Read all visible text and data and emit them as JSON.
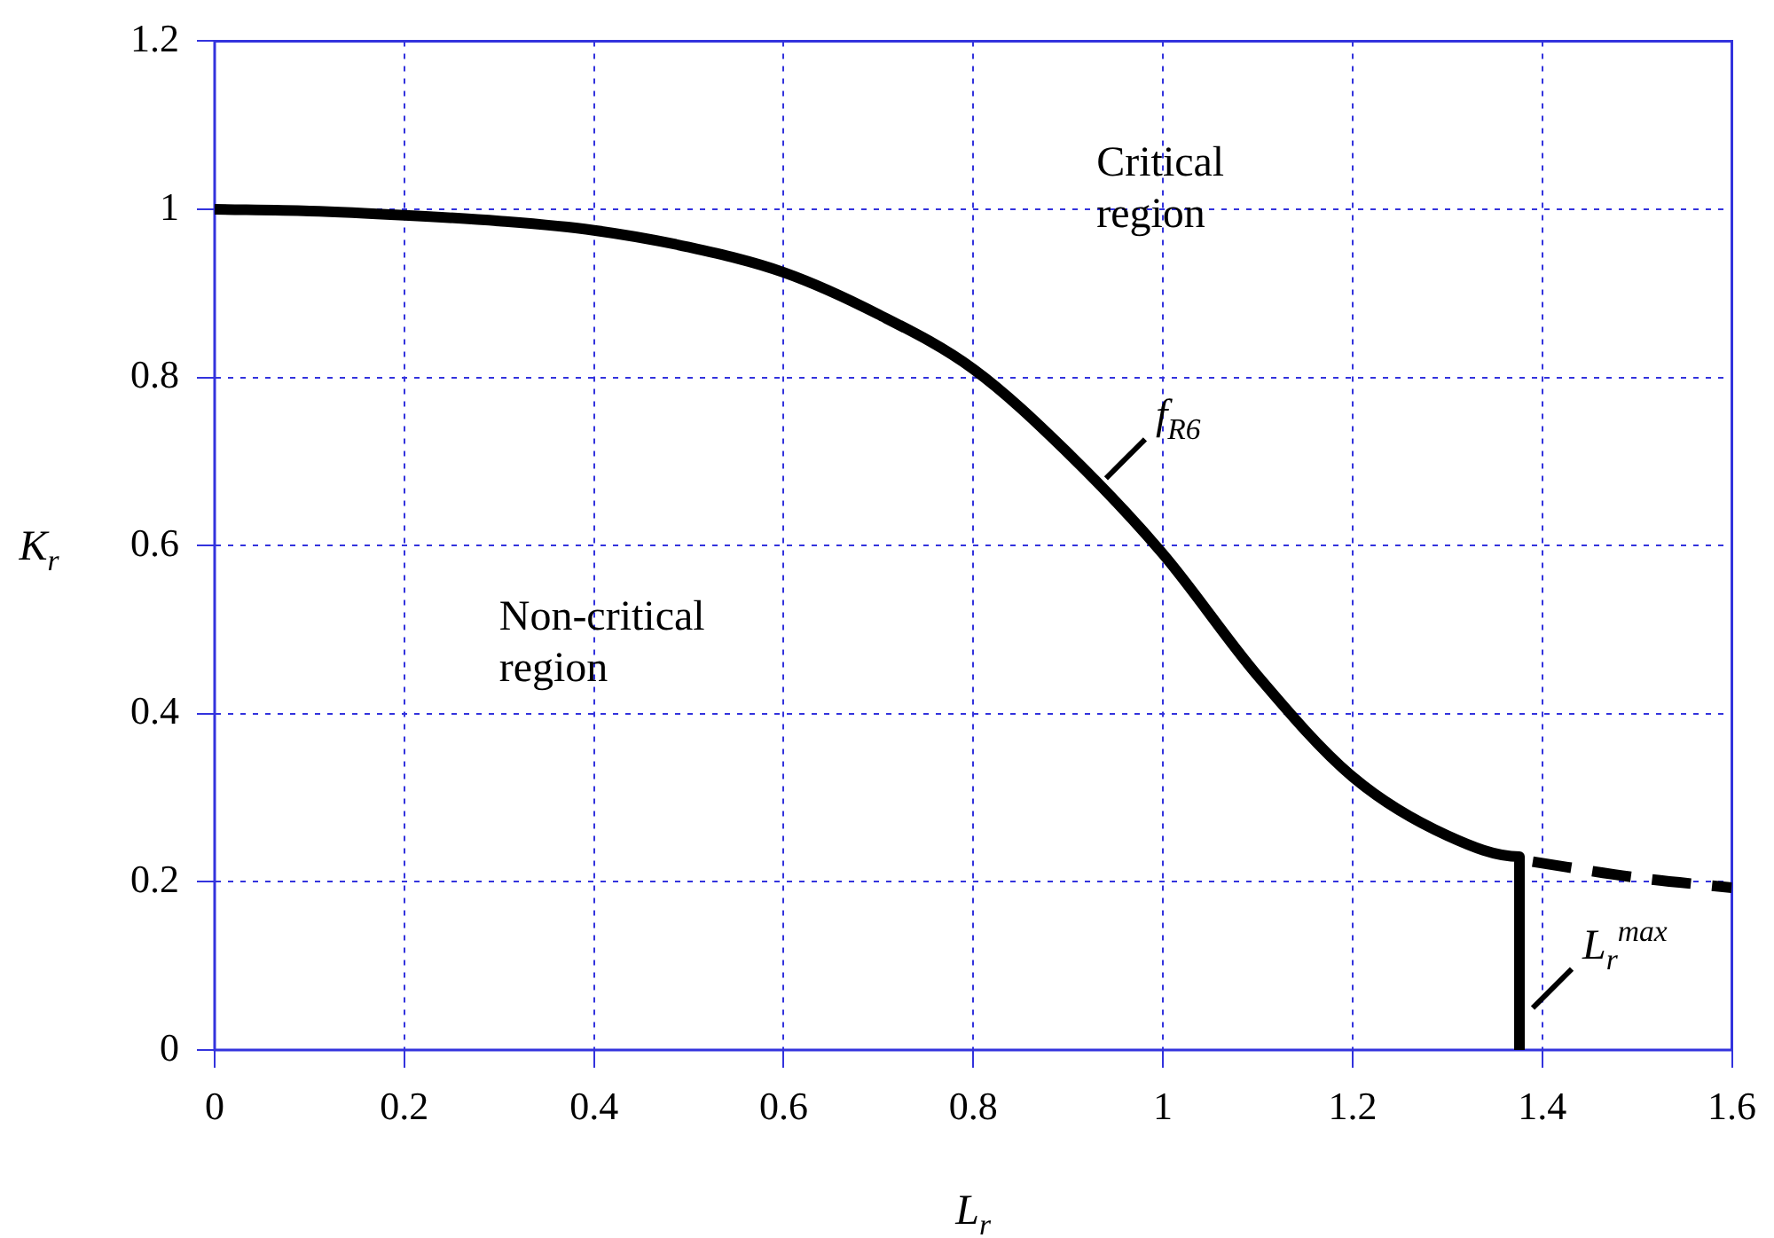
{
  "chart_data": {
    "type": "line",
    "xlabel": "L$_{r}$",
    "ylabel": "K$_{r}$",
    "xlim": [
      0,
      1.6
    ],
    "xticks": [
      0,
      0.2,
      0.4,
      0.6,
      0.8,
      1,
      1.2,
      1.4,
      1.6
    ],
    "ylim": [
      0,
      1.2
    ],
    "yticks": [
      0,
      0.2,
      0.4,
      0.6,
      0.8,
      1,
      1.2
    ],
    "grid": true,
    "legend": false,
    "marker": "none",
    "series": [
      {
        "color": "#000000",
        "line_style": "solid",
        "x": [
          0,
          0.1,
          0.2,
          0.3,
          0.4,
          0.5,
          0.6,
          0.7,
          0.8,
          0.9,
          1.0,
          1.1,
          1.2,
          1.3,
          1.376,
          1.376
        ],
        "values": [
          1.0,
          0.998,
          0.993,
          0.986,
          0.975,
          0.955,
          0.925,
          0.875,
          0.81,
          0.71,
          0.59,
          0.445,
          0.325,
          0.255,
          0.23,
          0
        ]
      },
      {
        "color": "#000000",
        "line_style": "dashed",
        "x": [
          1.39,
          1.5,
          1.6
        ],
        "values": [
          0.224,
          0.205,
          0.193
        ]
      }
    ],
    "annotations": [
      "Critical region",
      "Non-critical region",
      {
        "text": "f$_{R6}$",
        "x": 0.94,
        "y": 0.68
      },
      "L$_{r}$$^{max}$"
    ]
  }
}
